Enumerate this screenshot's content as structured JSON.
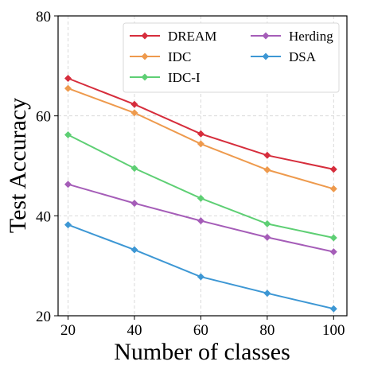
{
  "chart_data": {
    "type": "line",
    "xlabel": "Number of classes",
    "ylabel": "Test Accuracy",
    "x": [
      20,
      40,
      60,
      80,
      100
    ],
    "xticks": [
      20,
      40,
      60,
      80,
      100
    ],
    "xlim": [
      17,
      104
    ],
    "yticks": [
      20,
      40,
      60,
      80
    ],
    "ylim": [
      20,
      80
    ],
    "grid": true,
    "legend_position": "top-right",
    "legend_columns": 2,
    "series": [
      {
        "name": "DREAM",
        "color": "#d62d3c",
        "marker": "diamond",
        "values": [
          67.5,
          62.3,
          56.4,
          52.1,
          49.3
        ]
      },
      {
        "name": "IDC",
        "color": "#ee9a4d",
        "marker": "diamond",
        "values": [
          65.5,
          60.6,
          54.4,
          49.2,
          45.4
        ]
      },
      {
        "name": "IDC-I",
        "color": "#5ecf74",
        "marker": "diamond",
        "values": [
          56.2,
          49.5,
          43.5,
          38.4,
          35.6
        ]
      },
      {
        "name": "Herding",
        "color": "#a55db8",
        "marker": "diamond",
        "values": [
          46.3,
          42.5,
          39.0,
          35.7,
          32.8
        ]
      },
      {
        "name": "DSA",
        "color": "#3d97d4",
        "marker": "diamond",
        "values": [
          38.2,
          33.2,
          27.8,
          24.5,
          21.4
        ]
      }
    ]
  }
}
